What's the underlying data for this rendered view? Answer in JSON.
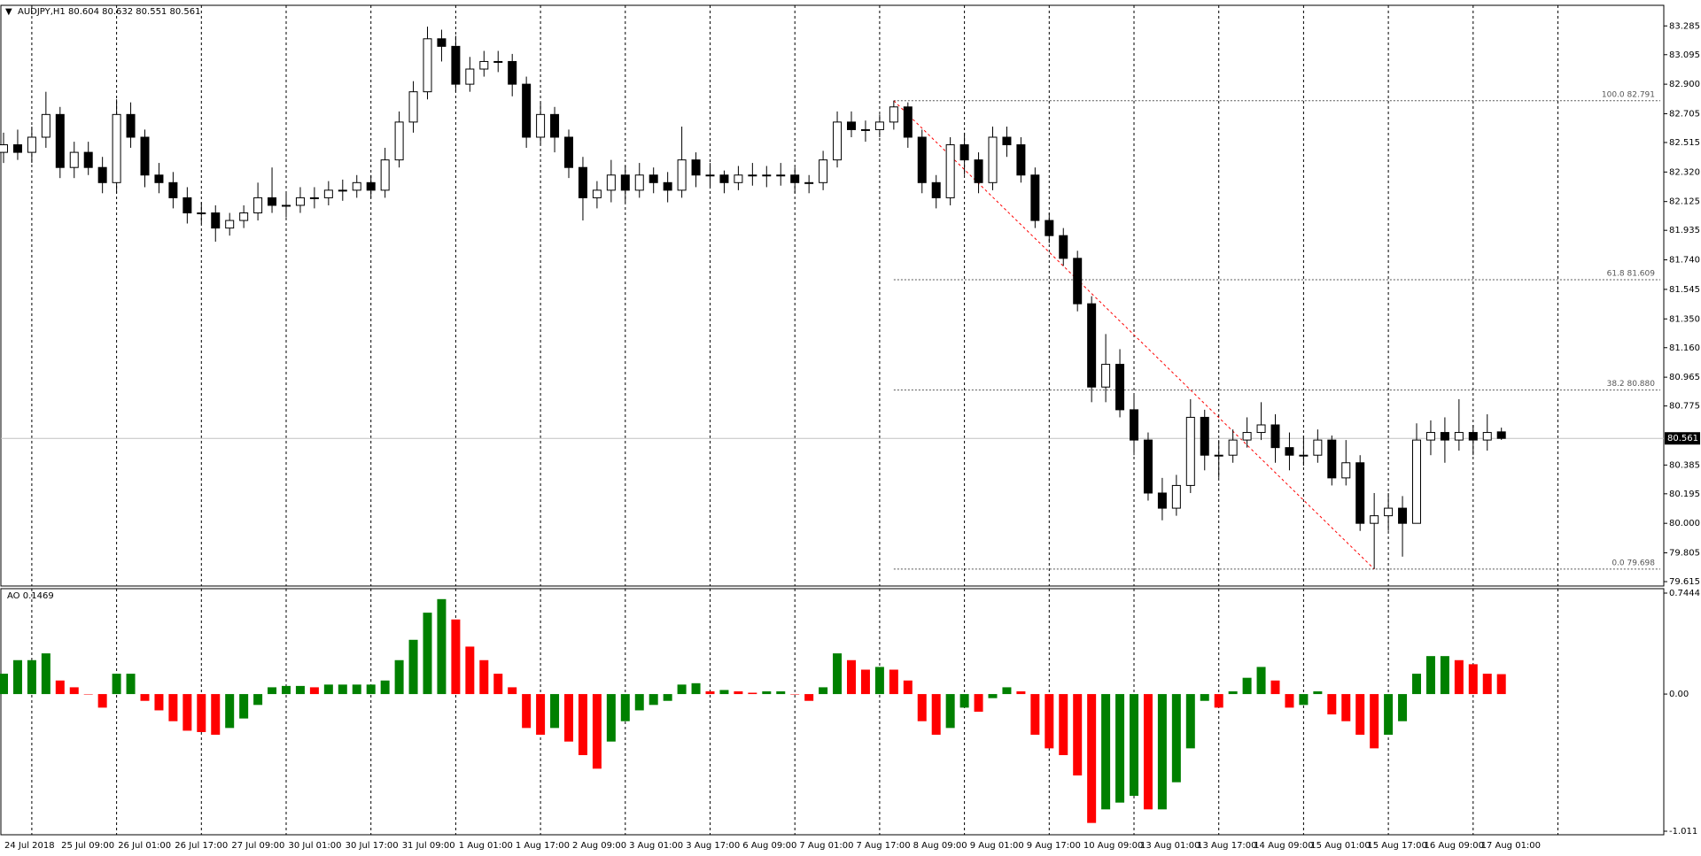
{
  "chart_data": {
    "type": "candlestick",
    "title": "AUDJPY,H1  80.604 80.632 80.551 80.561",
    "x_labels": [
      "24 Jul 2018",
      "25 Jul 09:00",
      "26 Jul 01:00",
      "26 Jul 17:00",
      "27 Jul 09:00",
      "30 Jul 01:00",
      "30 Jul 17:00",
      "31 Jul 09:00",
      "1 Aug 01:00",
      "1 Aug 17:00",
      "2 Aug 09:00",
      "3 Aug 01:00",
      "3 Aug 17:00",
      "6 Aug 09:00",
      "7 Aug 01:00",
      "7 Aug 17:00",
      "8 Aug 09:00",
      "9 Aug 01:00",
      "9 Aug 17:00",
      "10 Aug 09:00",
      "13 Aug 01:00",
      "13 Aug 17:00",
      "14 Aug 09:00",
      "15 Aug 01:00",
      "15 Aug 17:00",
      "16 Aug 09:00",
      "17 Aug 01:00"
    ],
    "open": [
      82.45,
      82.5,
      82.45,
      82.55,
      82.7,
      82.35,
      82.45,
      82.35,
      82.25,
      82.7,
      82.55,
      82.3,
      82.25,
      82.15,
      82.05,
      82.05,
      81.95,
      82.0,
      82.05,
      82.15,
      82.1,
      82.1,
      82.15,
      82.15,
      82.2,
      82.2,
      82.25,
      82.2,
      82.4,
      82.65,
      82.85,
      83.2,
      83.15,
      82.9,
      83.0,
      83.05,
      83.05,
      82.9,
      82.55,
      82.7,
      82.55,
      82.35,
      82.15,
      82.2,
      82.3,
      82.2,
      82.3,
      82.25,
      82.2,
      82.4,
      82.3,
      82.3,
      82.25,
      82.3,
      82.3,
      82.3,
      82.3,
      82.25,
      82.25,
      82.4,
      82.65,
      82.6,
      82.6,
      82.65,
      82.75,
      82.55,
      82.25,
      82.15,
      82.5,
      82.4,
      82.25,
      82.55,
      82.5,
      82.3,
      82.0,
      81.9,
      81.75,
      81.45,
      80.9,
      81.05,
      80.75,
      80.55,
      80.2,
      80.1,
      80.25,
      80.7,
      80.45,
      80.45,
      80.55,
      80.6,
      80.65,
      80.5,
      80.45,
      80.45,
      80.55,
      80.3,
      80.4,
      80.0,
      80.05,
      80.1,
      80.0,
      80.55,
      80.6,
      80.55,
      80.6,
      80.55,
      80.604
    ],
    "high": [
      82.58,
      82.6,
      82.62,
      82.85,
      82.75,
      82.52,
      82.52,
      82.42,
      82.8,
      82.78,
      82.6,
      82.38,
      82.32,
      82.22,
      82.12,
      82.1,
      82.05,
      82.1,
      82.25,
      82.35,
      82.18,
      82.22,
      82.22,
      82.26,
      82.27,
      82.3,
      82.3,
      82.48,
      82.72,
      82.92,
      83.28,
      83.26,
      83.22,
      83.08,
      83.12,
      83.12,
      83.1,
      82.95,
      82.78,
      82.75,
      82.6,
      82.42,
      82.26,
      82.4,
      82.36,
      82.38,
      82.35,
      82.32,
      82.62,
      82.45,
      82.38,
      82.33,
      82.36,
      82.38,
      82.36,
      82.38,
      82.35,
      82.3,
      82.46,
      82.72,
      82.72,
      82.66,
      82.7,
      82.791,
      82.78,
      82.6,
      82.3,
      82.55,
      82.58,
      82.45,
      82.62,
      82.62,
      82.55,
      82.35,
      82.05,
      81.95,
      81.8,
      81.5,
      81.25,
      81.15,
      80.85,
      80.6,
      80.3,
      80.32,
      80.82,
      80.75,
      80.55,
      80.62,
      80.7,
      80.8,
      80.72,
      80.6,
      80.58,
      80.62,
      80.58,
      80.55,
      80.45,
      80.2,
      80.2,
      80.18,
      80.66,
      80.68,
      80.7,
      80.82,
      80.65,
      80.72,
      80.632
    ],
    "low": [
      82.38,
      82.4,
      82.38,
      82.48,
      82.28,
      82.28,
      82.3,
      82.18,
      82.18,
      82.48,
      82.22,
      82.18,
      82.08,
      81.98,
      81.98,
      81.86,
      81.9,
      81.95,
      82.0,
      82.05,
      82.02,
      82.05,
      82.08,
      82.1,
      82.13,
      82.15,
      82.15,
      82.15,
      82.35,
      82.58,
      82.8,
      83.05,
      82.85,
      82.85,
      82.95,
      82.98,
      82.82,
      82.48,
      82.5,
      82.45,
      82.28,
      82.0,
      82.08,
      82.12,
      82.12,
      82.15,
      82.18,
      82.12,
      82.15,
      82.22,
      82.22,
      82.18,
      82.2,
      82.23,
      82.22,
      82.23,
      82.18,
      82.18,
      82.2,
      82.35,
      82.55,
      82.52,
      82.55,
      82.6,
      82.48,
      82.18,
      82.08,
      82.1,
      82.3,
      82.18,
      82.2,
      82.42,
      82.25,
      81.95,
      81.85,
      81.7,
      81.4,
      80.8,
      80.8,
      80.7,
      80.45,
      80.15,
      80.02,
      80.05,
      80.2,
      80.35,
      80.3,
      80.4,
      80.5,
      80.55,
      80.4,
      80.35,
      80.38,
      80.4,
      80.25,
      80.25,
      79.95,
      79.698,
      79.95,
      79.78,
      80.0,
      80.45,
      80.4,
      80.48,
      80.45,
      80.48,
      80.551
    ],
    "close": [
      82.5,
      82.45,
      82.55,
      82.7,
      82.35,
      82.45,
      82.35,
      82.25,
      82.7,
      82.55,
      82.3,
      82.25,
      82.15,
      82.05,
      82.05,
      81.95,
      82.0,
      82.05,
      82.15,
      82.1,
      82.1,
      82.15,
      82.15,
      82.2,
      82.2,
      82.25,
      82.2,
      82.4,
      82.65,
      82.85,
      83.2,
      83.15,
      82.9,
      83.0,
      83.05,
      83.05,
      82.9,
      82.55,
      82.7,
      82.55,
      82.35,
      82.15,
      82.2,
      82.3,
      82.2,
      82.3,
      82.25,
      82.2,
      82.4,
      82.3,
      82.3,
      82.25,
      82.3,
      82.3,
      82.3,
      82.3,
      82.25,
      82.25,
      82.4,
      82.65,
      82.6,
      82.6,
      82.65,
      82.75,
      82.55,
      82.25,
      82.15,
      82.5,
      82.4,
      82.25,
      82.55,
      82.5,
      82.3,
      82.0,
      81.9,
      81.75,
      81.45,
      80.9,
      81.05,
      80.75,
      80.55,
      80.2,
      80.1,
      80.25,
      80.7,
      80.45,
      80.45,
      80.55,
      80.6,
      80.65,
      80.5,
      80.45,
      80.45,
      80.55,
      80.3,
      80.4,
      80.0,
      80.05,
      80.1,
      80.0,
      80.55,
      80.6,
      80.55,
      80.6,
      80.55,
      80.6,
      80.561
    ],
    "up_color": "#ffffff",
    "down_color": "#000000",
    "ylim": [
      79.586,
      83.421
    ],
    "yticks": [
      83.285,
      {
        "value": 83.095,
        "label": "83.095"
      },
      {
        "value": 82.9,
        "label": "82.900"
      },
      82.705,
      82.515,
      {
        "value": 82.32,
        "label": "82.320"
      },
      82.125,
      81.935,
      {
        "value": 81.74,
        "label": "81.740"
      },
      81.545,
      {
        "value": 81.35,
        "label": "81.350"
      },
      {
        "value": 81.16,
        "label": "81.160"
      },
      80.965,
      80.775,
      80.385,
      80.195,
      {
        "value": 80.0,
        "label": "80.000"
      },
      79.805,
      79.615
    ],
    "current_price": 80.561,
    "fib_levels": [
      {
        "label": "100.0 82.791",
        "value": 82.791
      },
      {
        "label": "61.8 81.609",
        "value": 81.609
      },
      {
        "label": "38.2 80.880",
        "value": 80.88
      },
      {
        "label": "0.0 79.698",
        "value": 79.698
      }
    ],
    "trendline_color": "#ff0000",
    "ao": {
      "type": "bar",
      "title": "AO 0.1469",
      "values": [
        0.15,
        0.25,
        0.25,
        0.3,
        0.1,
        0.05,
        0.0,
        -0.1,
        0.15,
        0.15,
        -0.05,
        -0.12,
        -0.2,
        -0.27,
        -0.28,
        -0.3,
        -0.25,
        -0.18,
        -0.08,
        0.05,
        0.06,
        0.06,
        0.05,
        0.07,
        0.07,
        0.07,
        0.07,
        0.1,
        0.25,
        0.4,
        0.6,
        0.7,
        0.55,
        0.35,
        0.25,
        0.15,
        0.05,
        -0.25,
        -0.3,
        -0.25,
        -0.35,
        -0.45,
        -0.55,
        -0.35,
        -0.2,
        -0.12,
        -0.08,
        -0.05,
        0.07,
        0.08,
        0.02,
        0.03,
        0.02,
        0.01,
        0.02,
        0.02,
        0.0,
        -0.05,
        0.05,
        0.3,
        0.25,
        0.18,
        0.2,
        0.18,
        0.1,
        -0.2,
        -0.3,
        -0.25,
        -0.1,
        -0.13,
        -0.03,
        0.05,
        0.02,
        -0.3,
        -0.4,
        -0.45,
        -0.6,
        -0.95,
        -0.85,
        -0.8,
        -0.75,
        -0.85,
        -0.85,
        -0.65,
        -0.4,
        -0.05,
        -0.1,
        0.02,
        0.12,
        0.2,
        0.1,
        -0.1,
        -0.08,
        0.02,
        -0.15,
        -0.2,
        -0.3,
        -0.4,
        -0.3,
        -0.2,
        0.15,
        0.28,
        0.28,
        0.25,
        0.22,
        0.15,
        0.1469
      ],
      "up_color": "#008000",
      "down_color": "#ff0000",
      "ylim": [
        -1.011,
        0.7444
      ],
      "yticks": [
        0.7444,
        {
          "value": 0,
          "label": "0.00"
        },
        -1.011
      ]
    }
  }
}
